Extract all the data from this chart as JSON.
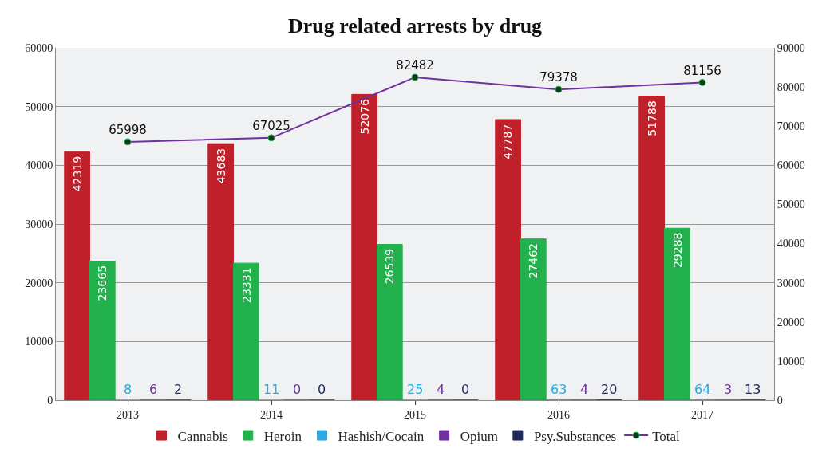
{
  "chart_data": {
    "type": "bar",
    "title": "Drug related arrests by drug",
    "categories": [
      "2013",
      "2014",
      "2015",
      "2016",
      "2017"
    ],
    "series": [
      {
        "name": "Cannabis",
        "color": "#c0202a",
        "values": [
          42319,
          43683,
          52076,
          47787,
          51788
        ]
      },
      {
        "name": "Heroin",
        "color": "#22b14c",
        "values": [
          23665,
          23331,
          26539,
          27462,
          29288
        ]
      },
      {
        "name": "Hashish/Cocain",
        "color": "#29abe2",
        "values": [
          8,
          11,
          25,
          63,
          64
        ]
      },
      {
        "name": "Opium",
        "color": "#7030a0",
        "values": [
          6,
          0,
          4,
          4,
          3
        ]
      },
      {
        "name": "Psy.Substances",
        "color": "#1f2a5a",
        "values": [
          2,
          0,
          0,
          20,
          13
        ]
      },
      {
        "name": "Total",
        "type": "line",
        "axis": "y2",
        "color": "#7030a0",
        "marker": "circle",
        "values": [
          65998,
          67025,
          82482,
          79378,
          81156
        ]
      }
    ],
    "ylim": [
      0,
      60000
    ],
    "yticks": [
      0,
      10000,
      20000,
      30000,
      40000,
      50000,
      60000
    ],
    "y2lim": [
      0,
      90000
    ],
    "y2ticks": [
      0,
      10000,
      20000,
      30000,
      40000,
      50000,
      60000,
      70000,
      80000,
      90000
    ],
    "grid": "y",
    "legend": "bottom",
    "data_labels": true
  }
}
